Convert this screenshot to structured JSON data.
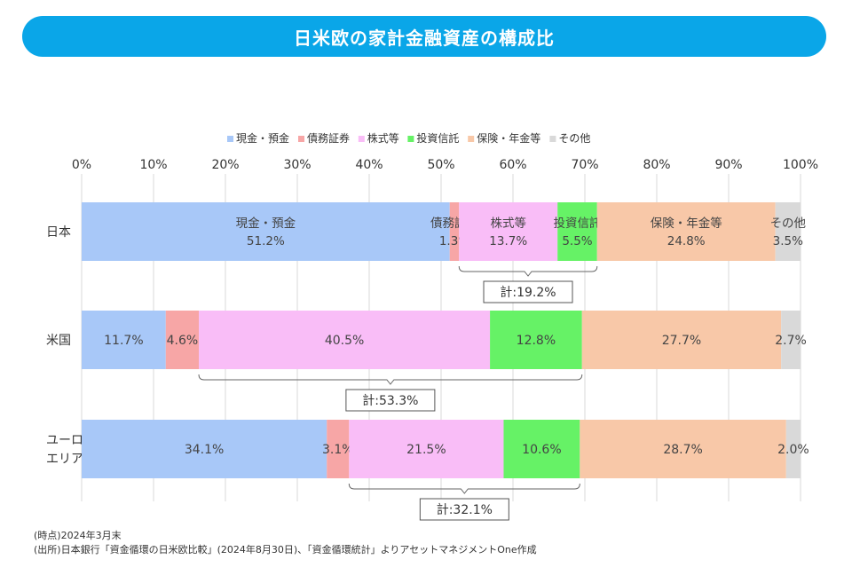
{
  "title": "日米欧の家計金融資産の構成比",
  "colors": {
    "title_bg": "#0aa6e8",
    "series": [
      "#a8c8f8",
      "#f7a6a6",
      "#f9bdf7",
      "#66f266",
      "#f8c8a8",
      "#d9d9d9"
    ]
  },
  "chart_data": {
    "type": "bar",
    "orientation": "horizontal",
    "stacked": true,
    "categories": [
      "日本",
      "米国",
      "ユーロ\nエリア"
    ],
    "series": [
      {
        "name": "現金・預金",
        "values": [
          51.2,
          11.7,
          34.1
        ]
      },
      {
        "name": "債務証券",
        "values": [
          1.3,
          4.6,
          3.1
        ]
      },
      {
        "name": "株式等",
        "values": [
          13.7,
          40.5,
          21.5
        ]
      },
      {
        "name": "投資信託",
        "values": [
          5.5,
          12.8,
          10.6
        ]
      },
      {
        "name": "保険・年金等",
        "values": [
          24.8,
          27.7,
          28.7
        ]
      },
      {
        "name": "その他",
        "values": [
          3.5,
          2.7,
          2.0
        ]
      }
    ],
    "xlim": [
      0,
      100
    ],
    "x_ticks": [
      "0%",
      "10%",
      "20%",
      "30%",
      "40%",
      "50%",
      "60%",
      "70%",
      "80%",
      "90%",
      "100%"
    ],
    "grid": true,
    "legend": "top",
    "annotations": [
      {
        "category": "日本",
        "text": "計:19.2%",
        "from": 52.5,
        "to": 71.7
      },
      {
        "category": "米国",
        "text": "計:53.3%",
        "from": 16.3,
        "to": 69.6
      },
      {
        "category": "ユーロ\nエリア",
        "text": "計:32.1%",
        "from": 37.2,
        "to": 69.3
      }
    ]
  },
  "notes": {
    "line1": "(時点)2024年3月末",
    "line2": "(出所)日本銀行「資金循環の日米欧比較」(2024年8月30日)、「資金循環統計」よりアセットマネジメントOne作成"
  }
}
